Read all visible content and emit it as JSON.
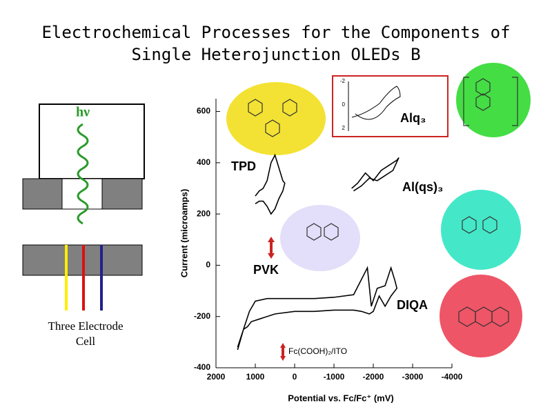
{
  "chart_data": {
    "type": "line",
    "title": [
      "Electrochemical Processes for the Components of",
      "Single Heterojunction OLEDs B"
    ],
    "x_label": "Potential vs. Fc/Fc⁺ (mV)",
    "y_label": "Current (microamps)",
    "xlim": [
      2000,
      -4000
    ],
    "xticks": [
      2000,
      1000,
      0,
      -1000,
      -2000,
      -3000,
      -4000
    ],
    "ylim": [
      -400,
      650
    ],
    "yticks": [
      -400,
      -200,
      0,
      200,
      400,
      600
    ],
    "series": [
      {
        "name": "TPD",
        "color": "#000000",
        "x": [
          1000,
          900,
          800,
          700,
          600,
          500,
          400,
          300,
          250,
          300,
          400,
          500,
          600,
          700,
          800,
          900,
          1000
        ],
        "values": [
          270,
          290,
          300,
          330,
          400,
          430,
          380,
          330,
          320,
          290,
          260,
          220,
          200,
          230,
          250,
          250,
          240
        ]
      },
      {
        "name": "Al(qs)₃",
        "color": "#000000",
        "x": [
          -1450,
          -1600,
          -1800,
          -2000,
          -2200,
          -2400,
          -2600,
          -2650,
          -2500,
          -2300,
          -2100,
          -1900,
          -1700,
          -1500
        ],
        "values": [
          300,
          320,
          360,
          330,
          370,
          390,
          410,
          420,
          370,
          350,
          330,
          340,
          310,
          290
        ]
      },
      {
        "name": "DIQA",
        "color": "#000000",
        "x": [
          1450,
          1300,
          1150,
          1000,
          700,
          300,
          0,
          -500,
          -1000,
          -1500,
          -1750,
          -1850,
          -1950,
          -2100,
          -2300,
          -2450,
          -2550,
          -2600,
          -2450,
          -2300,
          -2150,
          -2000,
          -1900,
          -1700,
          -1500,
          -1000,
          -500,
          0,
          500,
          900,
          1100,
          1200,
          1300,
          1450
        ],
        "values": [
          -330,
          -250,
          -180,
          -140,
          -130,
          -130,
          -130,
          -130,
          -125,
          -115,
          -40,
          -10,
          -160,
          -90,
          -80,
          -10,
          -60,
          -90,
          -120,
          -160,
          -120,
          -180,
          -190,
          -180,
          -175,
          -175,
          -180,
          -180,
          -190,
          -210,
          -220,
          -240,
          -250,
          -320
        ]
      }
    ],
    "annotations": [
      "PVK",
      "Alq₃",
      "Fc(COOH)₂/ITO"
    ]
  },
  "diagram": {
    "symbol": "hν",
    "caption": [
      "Three Electrode",
      "Cell"
    ]
  },
  "inset": {
    "yticks": [
      -2,
      0,
      2
    ]
  }
}
